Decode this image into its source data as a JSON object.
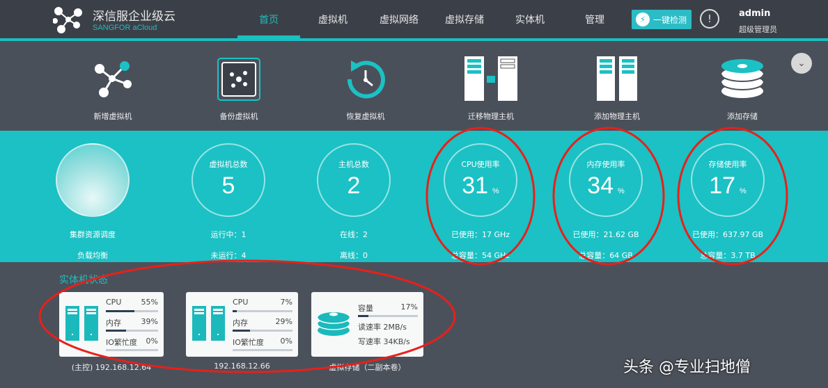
{
  "header": {
    "brand": "深信服企业级云",
    "brand_sub": "SANGFOR aCloud",
    "nav": [
      "首页",
      "虚拟机",
      "虚拟网络",
      "虚拟存储",
      "实体机",
      "管理"
    ],
    "active_nav": "首页",
    "check_button": "一键检测",
    "user": "admin",
    "role": "超级管理员"
  },
  "actions": [
    "新增虚拟机",
    "备份虚拟机",
    "恢复虚拟机",
    "迁移物理主机",
    "添加物理主机",
    "添加存储"
  ],
  "stats": {
    "cluster": {
      "l1": "集群资源调度",
      "l2": "负载均衡"
    },
    "vm": {
      "label": "虚拟机总数",
      "value": "5",
      "l1": "运行中：1",
      "l2": "未运行：4"
    },
    "host": {
      "label": "主机总数",
      "value": "2",
      "l1": "在线：2",
      "l2": "离线：0"
    },
    "cpu": {
      "label": "CPU使用率",
      "value": "31",
      "unit": "%",
      "l1": "已使用：17 GHz",
      "l2": "总容量：54 GHz"
    },
    "mem": {
      "label": "内存使用率",
      "value": "34",
      "unit": "%",
      "l1": "已使用：21.62 GB",
      "l2": "总容量：64 GB"
    },
    "storage": {
      "label": "存储使用率",
      "value": "17",
      "unit": "%",
      "l1": "已使用：637.97 GB",
      "l2": "总容量：3.7 TB"
    }
  },
  "host_status": {
    "title": "实体机状态",
    "hosts": [
      {
        "name": "(主控) 192.168.12.64",
        "cpu_label": "CPU",
        "cpu": "55%",
        "mem_label": "内存",
        "mem": "39%",
        "io_label": "IO繁忙度",
        "io": "0%"
      },
      {
        "name": "192.168.12.66",
        "cpu_label": "CPU",
        "cpu": "7%",
        "mem_label": "内存",
        "mem": "29%",
        "io_label": "IO繁忙度",
        "io": "0%"
      }
    ],
    "storage": {
      "name": "虚拟存储（二副本卷）",
      "cap_label": "容量",
      "cap": "17%",
      "read": "读速率 2MB/s",
      "write": "写速率 34KB/s"
    }
  },
  "watermark": "头条 @专业扫地僧",
  "colors": {
    "accent": "#1bc1c4",
    "nav_bg": "#3b4048",
    "annotation": "#e8201a"
  }
}
